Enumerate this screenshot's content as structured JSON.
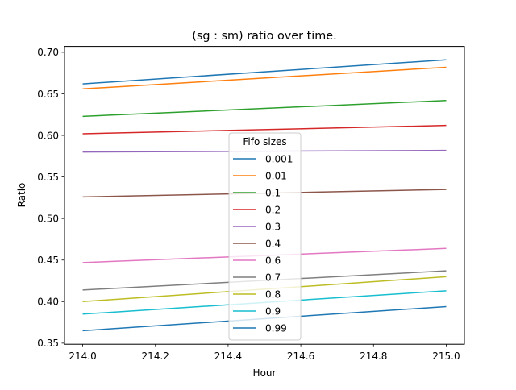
{
  "chart_data": {
    "type": "line",
    "title": "(sg : sm) ratio over time.",
    "xlabel": "Hour",
    "ylabel": "Ratio",
    "xlim": [
      213.95,
      215.05
    ],
    "ylim": [
      0.3487,
      0.7071
    ],
    "xticks": [
      214.0,
      214.2,
      214.4,
      214.6,
      214.8,
      215.0
    ],
    "xtick_labels": [
      "214.0",
      "214.2",
      "214.4",
      "214.6",
      "214.8",
      "215.0"
    ],
    "yticks": [
      0.35,
      0.4,
      0.45,
      0.5,
      0.55,
      0.6,
      0.65,
      0.7
    ],
    "ytick_labels": [
      "0.35",
      "0.40",
      "0.45",
      "0.50",
      "0.55",
      "0.60",
      "0.65",
      "0.70"
    ],
    "grid": false,
    "legend": {
      "title": "Fifo sizes",
      "placement": "center"
    },
    "x": [
      214.0,
      215.0
    ],
    "series": [
      {
        "name": "0.001",
        "color": "#1f77b4",
        "values": [
          0.662,
          0.691
        ]
      },
      {
        "name": "0.01",
        "color": "#ff7f0e",
        "values": [
          0.656,
          0.682
        ]
      },
      {
        "name": "0.1",
        "color": "#2ca02c",
        "values": [
          0.623,
          0.642
        ]
      },
      {
        "name": "0.2",
        "color": "#d62728",
        "values": [
          0.602,
          0.612
        ]
      },
      {
        "name": "0.3",
        "color": "#9467bd",
        "values": [
          0.58,
          0.582
        ]
      },
      {
        "name": "0.4",
        "color": "#8c564b",
        "values": [
          0.526,
          0.535
        ]
      },
      {
        "name": "0.6",
        "color": "#e377c2",
        "values": [
          0.447,
          0.464
        ]
      },
      {
        "name": "0.7",
        "color": "#7f7f7f",
        "values": [
          0.414,
          0.437
        ]
      },
      {
        "name": "0.8",
        "color": "#bcbd22",
        "values": [
          0.4,
          0.43
        ]
      },
      {
        "name": "0.9",
        "color": "#17becf",
        "values": [
          0.385,
          0.413
        ]
      },
      {
        "name": "0.99",
        "color": "#1f77b4",
        "values": [
          0.365,
          0.394
        ]
      }
    ]
  }
}
